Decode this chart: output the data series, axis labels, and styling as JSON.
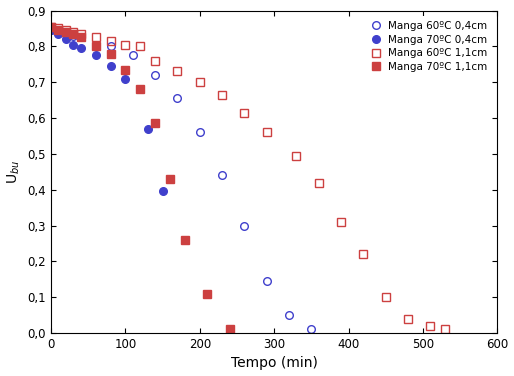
{
  "manga_60_04_x": [
    0,
    10,
    20,
    30,
    40,
    60,
    80,
    110,
    140,
    170,
    200,
    230,
    260,
    290,
    320,
    350
  ],
  "manga_60_04_y": [
    0.845,
    0.84,
    0.835,
    0.83,
    0.825,
    0.805,
    0.8,
    0.775,
    0.72,
    0.655,
    0.56,
    0.44,
    0.3,
    0.145,
    0.05,
    0.01
  ],
  "manga_70_04_x": [
    0,
    10,
    20,
    30,
    40,
    60,
    80,
    100,
    130,
    150
  ],
  "manga_70_04_y": [
    0.845,
    0.835,
    0.82,
    0.805,
    0.795,
    0.775,
    0.745,
    0.71,
    0.57,
    0.395
  ],
  "manga_60_11_x": [
    0,
    10,
    20,
    30,
    40,
    60,
    80,
    100,
    120,
    140,
    170,
    200,
    230,
    260,
    290,
    330,
    360,
    390,
    420,
    450,
    480,
    510,
    530
  ],
  "manga_60_11_y": [
    0.855,
    0.85,
    0.845,
    0.84,
    0.835,
    0.825,
    0.815,
    0.805,
    0.8,
    0.76,
    0.73,
    0.7,
    0.665,
    0.615,
    0.56,
    0.495,
    0.42,
    0.31,
    0.22,
    0.1,
    0.04,
    0.02,
    0.01
  ],
  "manga_70_11_x": [
    0,
    10,
    20,
    30,
    40,
    60,
    80,
    100,
    120,
    140,
    160,
    180,
    210,
    240
  ],
  "manga_70_11_y": [
    0.855,
    0.845,
    0.84,
    0.835,
    0.825,
    0.8,
    0.78,
    0.735,
    0.68,
    0.585,
    0.43,
    0.26,
    0.11,
    0.01
  ],
  "xlabel": "Tempo (min)",
  "ylabel": "U_bu",
  "xlim": [
    0,
    600
  ],
  "ylim": [
    0.0,
    0.9
  ],
  "yticks": [
    0.0,
    0.1,
    0.2,
    0.3,
    0.4,
    0.5,
    0.6,
    0.7,
    0.8,
    0.9
  ],
  "xticks": [
    0,
    100,
    200,
    300,
    400,
    500,
    600
  ],
  "color_blue": "#4040cc",
  "color_red": "#cc4040",
  "legend_labels": [
    "Manga 60ºC 0,4cm",
    "Manga 70ºC 0,4cm",
    "Manga 60ºC 1,1cm",
    "Manga 70ºC 1,1cm"
  ],
  "marker_size": 5.5,
  "bg_color": "#ffffff"
}
